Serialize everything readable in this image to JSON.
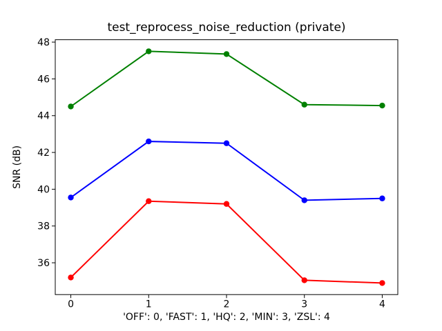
{
  "chart_data": {
    "type": "line",
    "title": "test_reprocess_noise_reduction (private)",
    "xlabel": "'OFF': 0, 'FAST': 1, 'HQ': 2, 'MIN': 3, 'ZSL': 4",
    "ylabel": "SNR (dB)",
    "x": [
      0,
      1,
      2,
      3,
      4
    ],
    "xticks": [
      "0",
      "1",
      "2",
      "3",
      "4"
    ],
    "yticks": [
      36,
      38,
      40,
      42,
      44,
      46,
      48
    ],
    "xlim": [
      -0.2,
      4.2
    ],
    "ylim": [
      34.27,
      48.13
    ],
    "grid": false,
    "legend": null,
    "series": [
      {
        "name": "green",
        "color": "#008000",
        "values": [
          44.5,
          47.5,
          47.35,
          44.6,
          44.55
        ]
      },
      {
        "name": "blue",
        "color": "#0000ff",
        "values": [
          39.55,
          42.6,
          42.5,
          39.4,
          39.5
        ]
      },
      {
        "name": "red",
        "color": "#ff0000",
        "values": [
          35.2,
          39.35,
          39.2,
          35.05,
          34.9
        ]
      }
    ]
  }
}
